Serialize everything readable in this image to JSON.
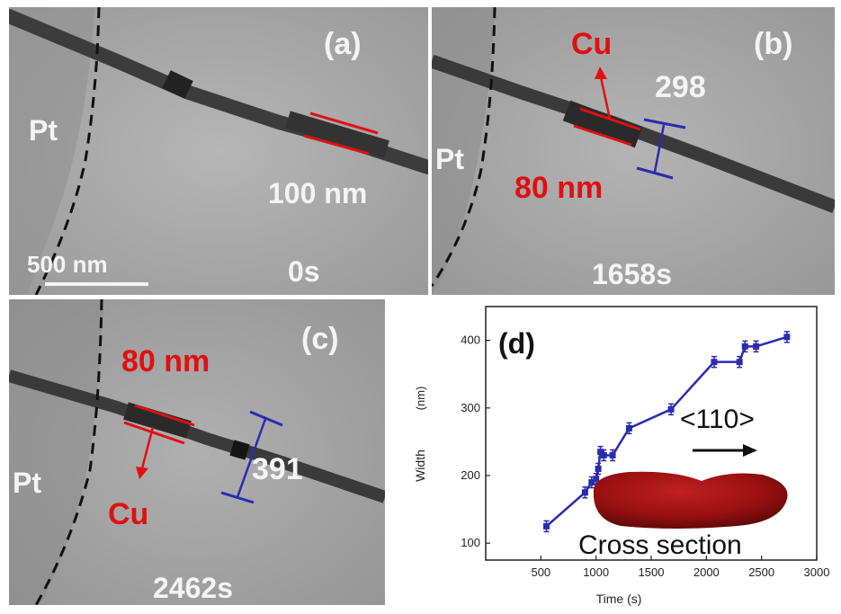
{
  "panel_a": {
    "tag": "(a)",
    "electrode": "Pt",
    "width_label": "100 nm",
    "scale_bar": "500 nm",
    "time": "0s"
  },
  "panel_b": {
    "tag": "(b)",
    "electrode": "Pt",
    "element": "Cu",
    "wire_width": "80 nm",
    "measured": "298",
    "time": "1658s"
  },
  "panel_c": {
    "tag": "(c)",
    "electrode": "Pt",
    "element": "Cu",
    "wire_width": "80 nm",
    "measured": "391",
    "time": "2462s"
  },
  "panel_d": {
    "tag": "(d)",
    "direction": "<110>",
    "cross_section_label": "Cross section"
  },
  "colors": {
    "red": "#e01010",
    "blue": "#2b2bb0",
    "cross_section": "#9a1010",
    "tem_gray": "#a8a8a8"
  },
  "chart_data": {
    "type": "line",
    "xlabel": "Time (s)",
    "ylabel": "Width",
    "ylabel_unit": "(nm)",
    "xlim": [
      0,
      3000
    ],
    "ylim": [
      75,
      450
    ],
    "xticks": [
      500,
      1000,
      1500,
      2000,
      2500,
      3000
    ],
    "yticks": [
      100,
      200,
      300,
      400
    ],
    "series": [
      {
        "x": [
          550,
          900,
          960,
          1000,
          1020,
          1040,
          1070,
          1150,
          1300,
          1680,
          2070,
          2300,
          2350,
          2450,
          2730
        ],
        "y": [
          125,
          175,
          190,
          195,
          210,
          235,
          230,
          230,
          270,
          298,
          368,
          368,
          391,
          391,
          405
        ],
        "error": 8
      }
    ],
    "grid": false
  }
}
